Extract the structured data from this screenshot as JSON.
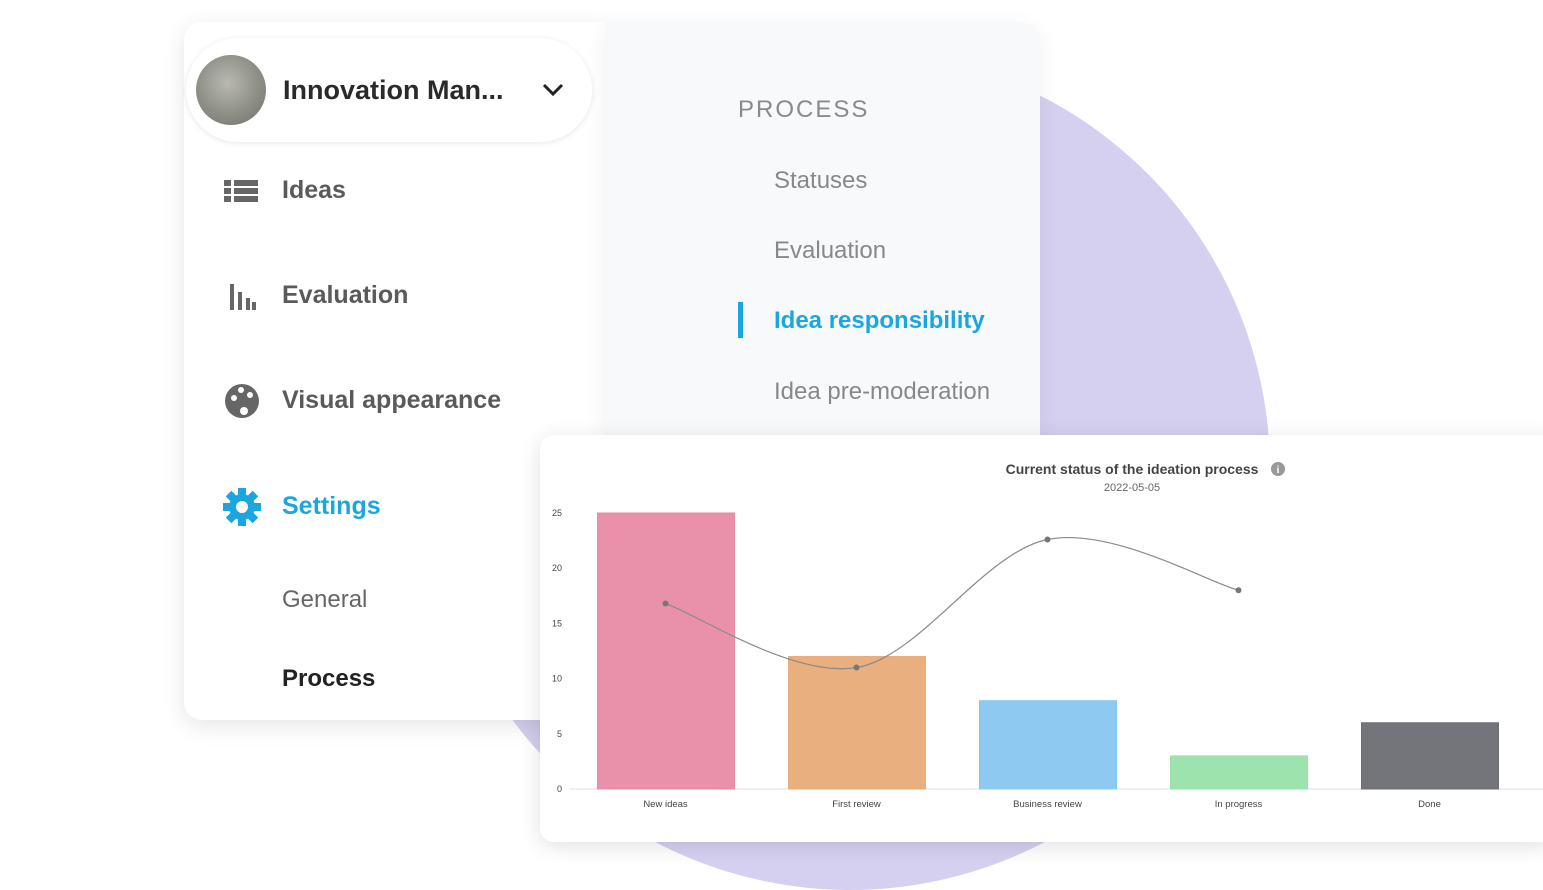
{
  "sidebar": {
    "title": "Innovation Man...",
    "items": [
      "Ideas",
      "Evaluation",
      "Visual appearance",
      "Settings"
    ],
    "active": 3,
    "subitems": [
      "General",
      "Process"
    ]
  },
  "submenu": {
    "heading": "PROCESS",
    "items": [
      "Statuses",
      "Evaluation",
      "Idea responsibility",
      "Idea pre-moderation"
    ],
    "active": 2
  },
  "chart_data": {
    "type": "bar",
    "title": "Current status of the ideation process",
    "subtitle": "2022-05-05",
    "categories": [
      "New ideas",
      "First review",
      "Business review",
      "In progress",
      "Done"
    ],
    "series": [
      {
        "type": "bar",
        "colors": [
          "#e88aa6",
          "#e9ab78",
          "#88c6f1",
          "#98e1a9",
          "#6b6e73"
        ],
        "values": [
          25,
          12,
          8,
          3,
          6
        ]
      },
      {
        "type": "line",
        "color": "#8a8a8a",
        "values": [
          16.8,
          11,
          22.6,
          18,
          null
        ]
      }
    ],
    "ylim": [
      0,
      25
    ],
    "yticks": [
      0,
      5,
      10,
      15,
      20,
      25
    ],
    "grid": false
  }
}
